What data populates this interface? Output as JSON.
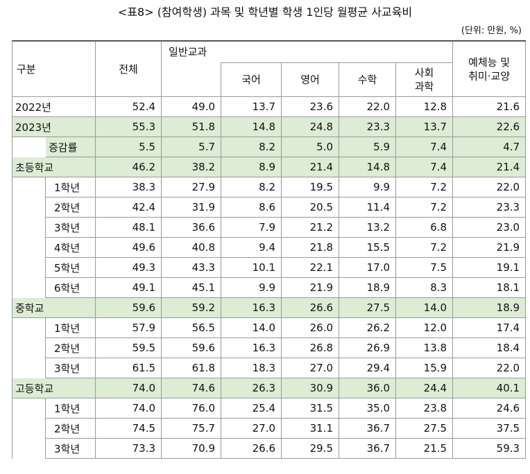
{
  "header": {
    "title": "<표8> (참여학생) 과목 및 학년별 학생 1인당 월평균 사교육비",
    "unit": "(단위: 만원, %)"
  },
  "table": {
    "columns": {
      "division": "구분",
      "total": "전체",
      "general": "일반교과",
      "subjects": [
        "국어",
        "영어",
        "수학",
        "사회\n과학"
      ],
      "arts": "예체능 및\n취미·교양"
    },
    "summary": [
      {
        "label": "2022년",
        "cells": [
          "52.4",
          "49.0",
          "13.7",
          "23.6",
          "22.0",
          "12.8",
          "21.6"
        ]
      },
      {
        "label": "2023년",
        "cells": [
          "55.3",
          "51.8",
          "14.8",
          "24.8",
          "23.3",
          "13.7",
          "22.6"
        ]
      },
      {
        "label": "증감률",
        "cells": [
          "5.5",
          "5.7",
          "8.2",
          "5.0",
          "5.9",
          "7.4",
          "4.7"
        ]
      }
    ],
    "groups": [
      {
        "label": "초등학교",
        "cells": [
          "46.2",
          "38.2",
          "8.9",
          "21.4",
          "14.8",
          "7.4",
          "21.4"
        ],
        "rows": [
          {
            "label": "1학년",
            "cells": [
              "38.3",
              "27.9",
              "8.2",
              "19.5",
              "9.9",
              "7.2",
              "22.0"
            ]
          },
          {
            "label": "2학년",
            "cells": [
              "42.4",
              "31.9",
              "8.6",
              "20.5",
              "11.4",
              "7.2",
              "23.3"
            ]
          },
          {
            "label": "3학년",
            "cells": [
              "48.1",
              "36.6",
              "7.9",
              "21.2",
              "13.2",
              "6.8",
              "23.0"
            ]
          },
          {
            "label": "4학년",
            "cells": [
              "49.6",
              "40.8",
              "9.4",
              "21.8",
              "15.5",
              "7.2",
              "21.9"
            ]
          },
          {
            "label": "5학년",
            "cells": [
              "49.3",
              "43.3",
              "10.1",
              "22.1",
              "17.0",
              "7.5",
              "19.1"
            ]
          },
          {
            "label": "6학년",
            "cells": [
              "49.1",
              "45.1",
              "9.9",
              "21.9",
              "18.9",
              "8.3",
              "18.1"
            ]
          }
        ]
      },
      {
        "label": "중학교",
        "cells": [
          "59.6",
          "59.2",
          "16.3",
          "26.6",
          "27.5",
          "14.0",
          "18.9"
        ],
        "rows": [
          {
            "label": "1학년",
            "cells": [
              "57.9",
              "56.5",
              "14.0",
              "26.0",
              "26.2",
              "12.0",
              "17.4"
            ]
          },
          {
            "label": "2학년",
            "cells": [
              "59.5",
              "59.6",
              "16.3",
              "26.8",
              "26.9",
              "13.8",
              "18.4"
            ]
          },
          {
            "label": "3학년",
            "cells": [
              "61.5",
              "61.8",
              "18.3",
              "27.0",
              "29.4",
              "15.9",
              "22.0"
            ]
          }
        ]
      },
      {
        "label": "고등학교",
        "cells": [
          "74.0",
          "74.6",
          "26.3",
          "30.9",
          "36.0",
          "24.4",
          "40.1"
        ],
        "rows": [
          {
            "label": "1학년",
            "cells": [
              "74.0",
              "76.0",
              "25.4",
              "31.5",
              "35.0",
              "23.8",
              "24.6"
            ]
          },
          {
            "label": "2학년",
            "cells": [
              "74.5",
              "75.7",
              "27.0",
              "31.1",
              "36.7",
              "27.5",
              "37.5"
            ]
          },
          {
            "label": "3학년",
            "cells": [
              "73.3",
              "70.9",
              "26.6",
              "29.5",
              "36.7",
              "21.5",
              "59.3"
            ]
          }
        ]
      }
    ]
  }
}
